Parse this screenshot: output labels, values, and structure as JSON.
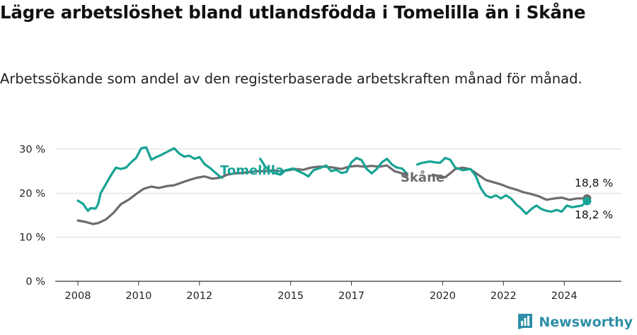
{
  "header": {
    "title": "Lägre arbetslöshet bland utlandsfödda i Tomelilla än i Skåne",
    "subtitle": "Arbetssökande som andel av den registerbaserade arbetskraften månad för månad."
  },
  "brand": {
    "name": "Newsworthy",
    "icon": "newsworthy-logo-icon"
  },
  "colors": {
    "tomelilla": "#16a394",
    "skane": "#6e6a6f",
    "grid": "#d9d9d9",
    "axis": "#333333"
  },
  "chart_data": {
    "type": "line",
    "x_start": "2008-01",
    "x_end": "2025-01",
    "x_ticks": [
      {
        "label": "2008",
        "year": 2008
      },
      {
        "label": "2010",
        "year": 2010
      },
      {
        "label": "2012",
        "year": 2012
      },
      {
        "label": "2015",
        "year": 2015
      },
      {
        "label": "2017",
        "year": 2017
      },
      {
        "label": "2020",
        "year": 2020
      },
      {
        "label": "2022",
        "year": 2022
      },
      {
        "label": "2024",
        "year": 2024
      }
    ],
    "y_ticks": [
      {
        "label": "0 %",
        "value": 0
      },
      {
        "label": "10 %",
        "value": 10
      },
      {
        "label": "20 %",
        "value": 20
      },
      {
        "label": "30 %",
        "value": 30
      }
    ],
    "ylim": [
      0,
      32
    ],
    "grid": true,
    "series": [
      {
        "name": "Tomelilla",
        "end_label": "18,2 %",
        "points": [
          [
            "2008-01",
            18.3
          ],
          [
            "2008-03",
            17.6
          ],
          [
            "2008-05",
            16.0
          ],
          [
            "2008-06",
            16.6
          ],
          [
            "2008-08",
            16.5
          ],
          [
            "2008-09",
            17.5
          ],
          [
            "2008-10",
            20.0
          ],
          [
            "2008-12",
            22.0
          ],
          [
            "2009-02",
            24.0
          ],
          [
            "2009-04",
            25.8
          ],
          [
            "2009-06",
            25.5
          ],
          [
            "2009-08",
            25.8
          ],
          [
            "2009-10",
            27.0
          ],
          [
            "2009-12",
            28.0
          ],
          [
            "2010-02",
            30.2
          ],
          [
            "2010-04",
            30.4
          ],
          [
            "2010-06",
            27.6
          ],
          [
            "2010-08",
            28.2
          ],
          [
            "2010-10",
            28.7
          ],
          [
            "2011-01",
            29.6
          ],
          [
            "2011-03",
            30.2
          ],
          [
            "2011-05",
            29.0
          ],
          [
            "2011-07",
            28.3
          ],
          [
            "2011-09",
            28.5
          ],
          [
            "2011-11",
            27.8
          ],
          [
            "2012-01",
            28.2
          ],
          [
            "2012-03",
            26.6
          ],
          [
            "2012-05",
            25.8
          ],
          [
            "2012-07",
            24.8
          ],
          [
            "2012-09",
            23.8
          ],
          [
            "2012-10",
            23.5
          ],
          [
            "2013-01",
            null
          ],
          [
            "2014-01",
            27.8
          ],
          [
            "2014-03",
            26.0
          ],
          [
            "2014-05",
            25.0
          ],
          [
            "2014-07",
            24.5
          ],
          [
            "2014-09",
            24.2
          ],
          [
            "2014-11",
            25.2
          ],
          [
            "2015-02",
            25.6
          ],
          [
            "2015-04",
            25.0
          ],
          [
            "2015-06",
            24.5
          ],
          [
            "2015-08",
            23.8
          ],
          [
            "2015-10",
            25.2
          ],
          [
            "2016-01",
            25.8
          ],
          [
            "2016-03",
            26.3
          ],
          [
            "2016-05",
            25.0
          ],
          [
            "2016-07",
            25.3
          ],
          [
            "2016-09",
            24.6
          ],
          [
            "2016-11",
            24.8
          ],
          [
            "2017-01",
            27.0
          ],
          [
            "2017-03",
            28.0
          ],
          [
            "2017-05",
            27.5
          ],
          [
            "2017-07",
            25.5
          ],
          [
            "2017-09",
            24.5
          ],
          [
            "2017-11",
            25.5
          ],
          [
            "2018-01",
            27.0
          ],
          [
            "2018-03",
            27.8
          ],
          [
            "2018-05",
            26.5
          ],
          [
            "2018-07",
            25.8
          ],
          [
            "2018-09",
            25.6
          ],
          [
            "2018-11",
            24.4
          ],
          [
            "2019-01",
            null
          ],
          [
            "2019-03",
            26.5
          ],
          [
            "2019-05",
            26.9
          ],
          [
            "2019-08",
            27.2
          ],
          [
            "2019-10",
            27.0
          ],
          [
            "2019-12",
            26.9
          ],
          [
            "2020-02",
            28.0
          ],
          [
            "2020-04",
            27.6
          ],
          [
            "2020-06",
            25.8
          ],
          [
            "2020-09",
            25.2
          ],
          [
            "2020-12",
            25.5
          ],
          [
            "2021-02",
            24.0
          ],
          [
            "2021-04",
            21.2
          ],
          [
            "2021-06",
            19.5
          ],
          [
            "2021-08",
            19.0
          ],
          [
            "2021-10",
            19.5
          ],
          [
            "2021-12",
            18.8
          ],
          [
            "2022-02",
            19.5
          ],
          [
            "2022-04",
            18.8
          ],
          [
            "2022-06",
            17.5
          ],
          [
            "2022-08",
            16.5
          ],
          [
            "2022-10",
            15.3
          ],
          [
            "2022-12",
            16.4
          ],
          [
            "2023-02",
            17.2
          ],
          [
            "2023-04",
            16.4
          ],
          [
            "2023-06",
            16.0
          ],
          [
            "2023-08",
            15.8
          ],
          [
            "2023-10",
            16.2
          ],
          [
            "2023-12",
            15.8
          ],
          [
            "2024-02",
            17.2
          ],
          [
            "2024-04",
            16.8
          ],
          [
            "2024-06",
            17.0
          ],
          [
            "2024-08",
            17.2
          ],
          [
            "2024-10",
            18.2
          ]
        ]
      },
      {
        "name": "Skåne",
        "end_label": "18,8 %",
        "points": [
          [
            "2008-01",
            13.8
          ],
          [
            "2008-04",
            13.5
          ],
          [
            "2008-07",
            13.0
          ],
          [
            "2008-09",
            13.2
          ],
          [
            "2008-12",
            14.0
          ],
          [
            "2009-03",
            15.5
          ],
          [
            "2009-06",
            17.5
          ],
          [
            "2009-09",
            18.5
          ],
          [
            "2009-12",
            19.8
          ],
          [
            "2010-03",
            21.0
          ],
          [
            "2010-06",
            21.5
          ],
          [
            "2010-09",
            21.2
          ],
          [
            "2010-12",
            21.6
          ],
          [
            "2011-03",
            21.8
          ],
          [
            "2011-06",
            22.4
          ],
          [
            "2011-09",
            23.0
          ],
          [
            "2011-12",
            23.5
          ],
          [
            "2012-03",
            23.8
          ],
          [
            "2012-06",
            23.3
          ],
          [
            "2012-09",
            23.5
          ],
          [
            "2012-12",
            24.2
          ],
          [
            "2013-03",
            24.5
          ],
          [
            "2013-06",
            24.6
          ],
          [
            "2013-09",
            24.8
          ],
          [
            "2013-12",
            25.0
          ],
          [
            "2014-03",
            25.0
          ],
          [
            "2014-06",
            25.2
          ],
          [
            "2014-09",
            25.0
          ],
          [
            "2014-12",
            25.2
          ],
          [
            "2015-03",
            25.5
          ],
          [
            "2015-06",
            25.3
          ],
          [
            "2015-09",
            25.8
          ],
          [
            "2015-12",
            26.0
          ],
          [
            "2016-03",
            26.0
          ],
          [
            "2016-06",
            25.8
          ],
          [
            "2016-09",
            25.5
          ],
          [
            "2016-12",
            26.0
          ],
          [
            "2017-03",
            26.2
          ],
          [
            "2017-06",
            26.0
          ],
          [
            "2017-09",
            26.2
          ],
          [
            "2017-12",
            26.0
          ],
          [
            "2018-03",
            26.3
          ],
          [
            "2018-06",
            25.0
          ],
          [
            "2018-09",
            24.5
          ],
          [
            "2018-11",
            24.0
          ],
          [
            "2019-01",
            null
          ],
          [
            "2019-09",
            24.2
          ],
          [
            "2019-12",
            23.8
          ],
          [
            "2020-02",
            23.6
          ],
          [
            "2020-04",
            24.5
          ],
          [
            "2020-06",
            25.5
          ],
          [
            "2020-09",
            25.8
          ],
          [
            "2020-12",
            25.4
          ],
          [
            "2021-03",
            24.2
          ],
          [
            "2021-06",
            23.0
          ],
          [
            "2021-09",
            22.5
          ],
          [
            "2021-12",
            22.0
          ],
          [
            "2022-03",
            21.3
          ],
          [
            "2022-06",
            20.8
          ],
          [
            "2022-09",
            20.2
          ],
          [
            "2022-12",
            19.8
          ],
          [
            "2023-03",
            19.3
          ],
          [
            "2023-06",
            18.5
          ],
          [
            "2023-09",
            18.8
          ],
          [
            "2023-12",
            19.0
          ],
          [
            "2024-03",
            18.5
          ],
          [
            "2024-06",
            18.8
          ],
          [
            "2024-09",
            18.8
          ],
          [
            "2024-10",
            18.8
          ]
        ]
      }
    ]
  }
}
